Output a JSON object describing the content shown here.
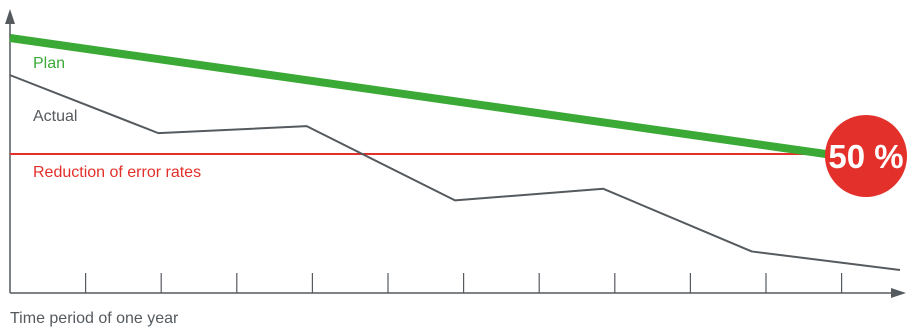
{
  "chart_data": {
    "type": "line",
    "title": "",
    "xlabel": "Time period of one year",
    "ylabel": "",
    "x": [
      0,
      1,
      2,
      3,
      4,
      5,
      6,
      7,
      8,
      9,
      10,
      11,
      12
    ],
    "xlim": [
      0,
      12
    ],
    "ylim": [
      0,
      100
    ],
    "grid": false,
    "series": [
      {
        "name": "Plan",
        "color": "#3aa935",
        "x": [
          0,
          11
        ],
        "y": [
          100,
          50
        ]
      },
      {
        "name": "Actual",
        "color": "#555a5f",
        "x": [
          0,
          2,
          4,
          6,
          8,
          10,
          12
        ],
        "y": [
          84,
          59,
          62,
          30,
          35,
          8,
          0
        ]
      }
    ],
    "reference_line": {
      "name": "Reduction of error rates",
      "color": "#e3302a",
      "y": 50
    },
    "annotation": {
      "text": "50 %",
      "color": "#e3302a",
      "x": 11.6,
      "y": 50
    }
  }
}
